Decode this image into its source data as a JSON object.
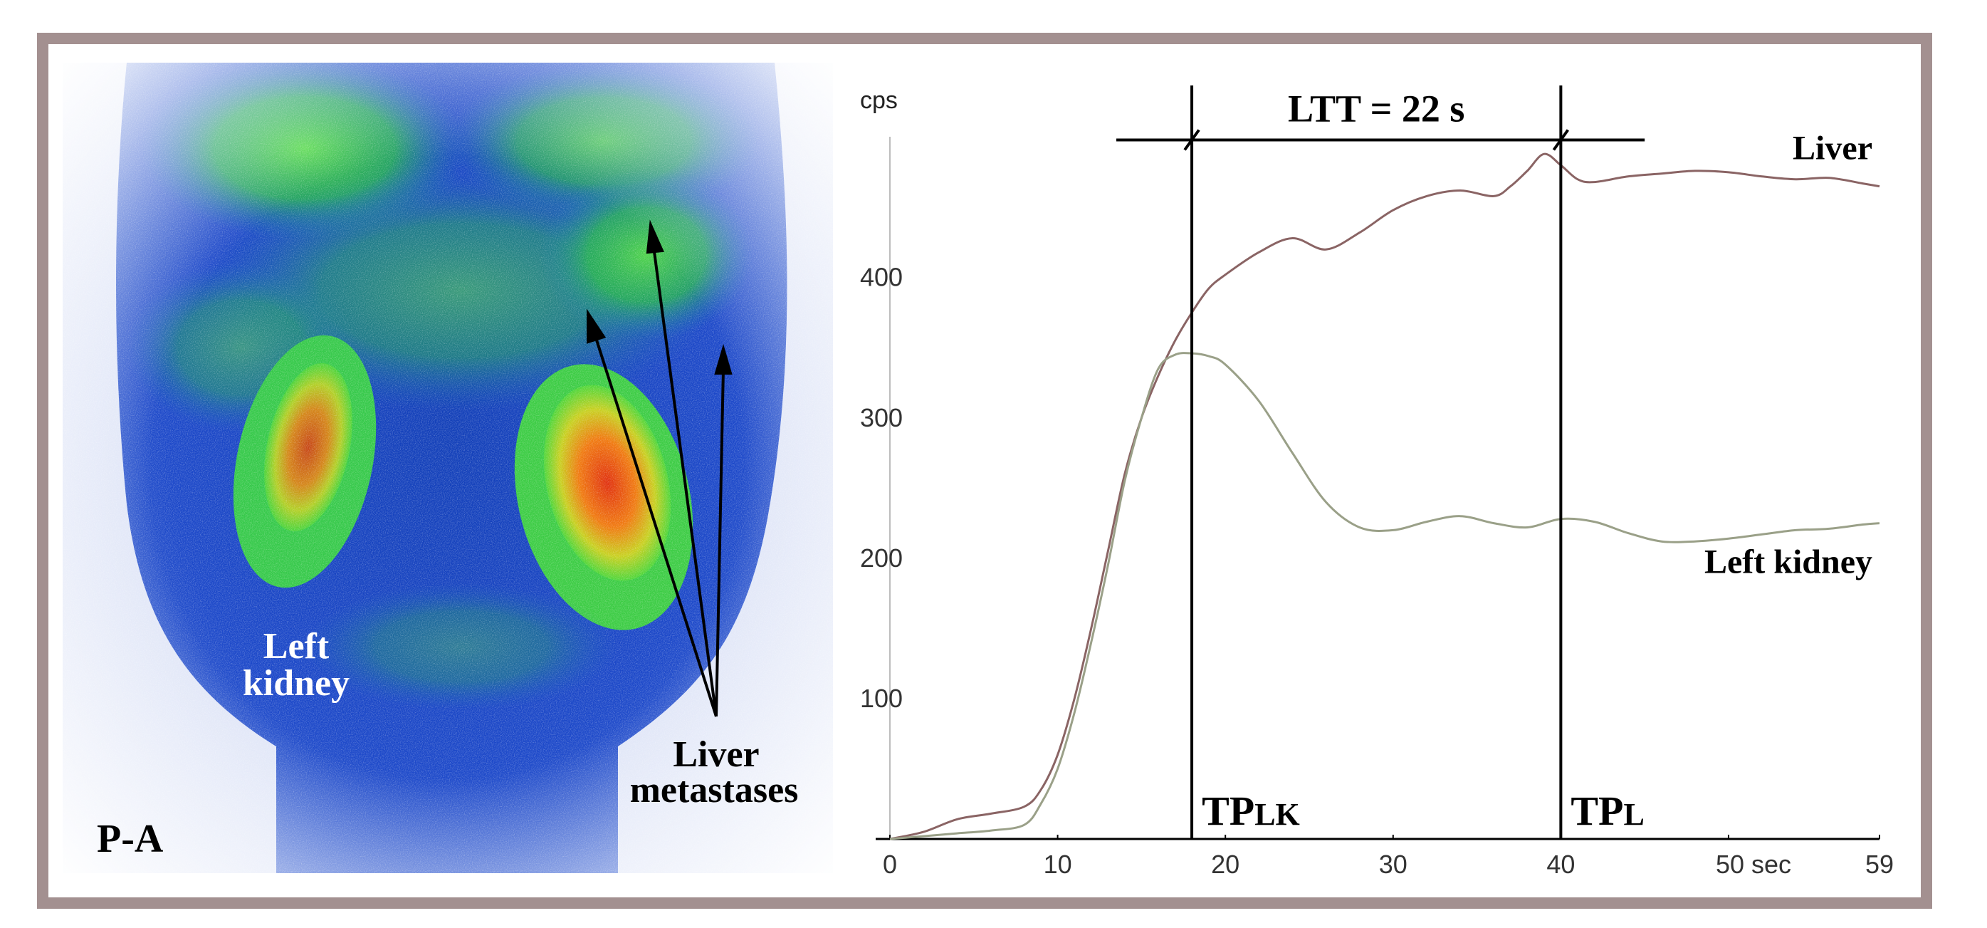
{
  "scan": {
    "view_label": "P-A",
    "kidney_label_line1": "Left",
    "kidney_label_line2": "kidney",
    "metastases_label_line1": "Liver",
    "metastases_label_line2": "metastases"
  },
  "colors": {
    "frame": "#a39090",
    "curve_liver": "#8a6464",
    "curve_kidney": "#9aa088",
    "scan_background": "#1f45c8",
    "hot_spot": "#e03a10",
    "uptake_green": "#3fd23a"
  },
  "chart_data": {
    "type": "line",
    "ylabel": "cps",
    "xlim": [
      0,
      59
    ],
    "ylim": [
      0,
      480
    ],
    "x_ticks": [
      0,
      10,
      20,
      30,
      40,
      50,
      59
    ],
    "x_tick_labels": [
      "0",
      "10",
      "20",
      "30",
      "40",
      "50 sec",
      "59"
    ],
    "y_ticks": [
      100,
      200,
      300,
      400
    ],
    "y_tick_labels": [
      "100",
      "200",
      "300",
      "400"
    ],
    "series": [
      {
        "name": "Liver",
        "x": [
          0,
          2,
          4,
          6,
          8,
          9,
          10,
          11,
          12,
          13,
          14,
          15,
          16,
          17,
          18,
          19,
          20,
          22,
          24,
          26,
          28,
          30,
          32,
          34,
          36,
          37,
          38,
          39,
          40,
          41,
          42,
          44,
          46,
          48,
          50,
          52,
          54,
          56,
          58,
          59
        ],
        "y": [
          0,
          5,
          14,
          18,
          23,
          35,
          60,
          100,
          150,
          205,
          260,
          300,
          330,
          355,
          375,
          392,
          402,
          418,
          428,
          420,
          432,
          448,
          458,
          462,
          458,
          465,
          476,
          488,
          480,
          470,
          468,
          472,
          474,
          476,
          475,
          472,
          470,
          471,
          467,
          465
        ]
      },
      {
        "name": "Left kidney",
        "x": [
          0,
          2,
          4,
          6,
          8,
          9,
          10,
          11,
          12,
          13,
          14,
          15,
          16,
          17,
          18,
          19,
          20,
          22,
          24,
          26,
          28,
          30,
          32,
          34,
          36,
          38,
          40,
          42,
          44,
          46,
          48,
          50,
          52,
          54,
          56,
          58,
          59
        ],
        "y": [
          0,
          2,
          4,
          6,
          10,
          25,
          50,
          90,
          140,
          195,
          255,
          300,
          335,
          345,
          346,
          344,
          338,
          312,
          275,
          240,
          222,
          220,
          226,
          230,
          225,
          222,
          228,
          226,
          218,
          212,
          212,
          214,
          217,
          220,
          221,
          224,
          225
        ]
      }
    ],
    "annotations": {
      "interval_label": "LTT = 22 s",
      "marker_1": {
        "x": 18,
        "label_main": "TP",
        "label_sub": "LK"
      },
      "marker_2": {
        "x": 40,
        "label_main": "TP",
        "label_sub": "L"
      },
      "interval_x_range": [
        13.5,
        45
      ],
      "interval_y": 498
    }
  }
}
